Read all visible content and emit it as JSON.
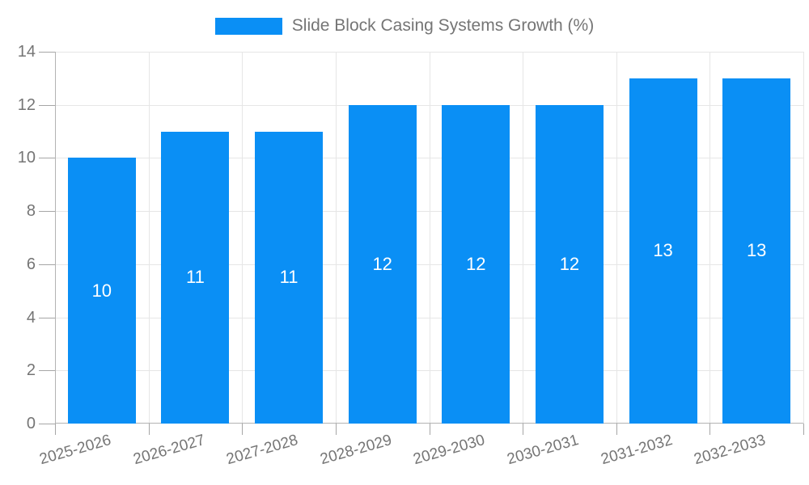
{
  "chart_data": {
    "type": "bar",
    "title": "",
    "series_name": "Slide Block Casing Systems Growth (%)",
    "categories": [
      "2025-2026",
      "2026-2027",
      "2027-2028",
      "2028-2029",
      "2029-2030",
      "2030-2031",
      "2031-2032",
      "2032-2033"
    ],
    "values": [
      10,
      11,
      11,
      12,
      12,
      12,
      13,
      13
    ],
    "ylim": [
      0,
      14
    ],
    "yticks": [
      0,
      2,
      4,
      6,
      8,
      10,
      12,
      14
    ],
    "xlabel": "",
    "ylabel": "",
    "grid": true,
    "legend_position": "top",
    "value_labels": "inside-center",
    "x_label_rotation_deg": -16,
    "colors": {
      "bar": "#0a8ff5",
      "value_label": "#ffffff",
      "axis_text": "#757575",
      "legend_text": "#757575",
      "gridline": "#e6e6e6",
      "axis_line": "#b3b3b3",
      "tick": "#a6a6a6",
      "background": "#ffffff"
    }
  }
}
